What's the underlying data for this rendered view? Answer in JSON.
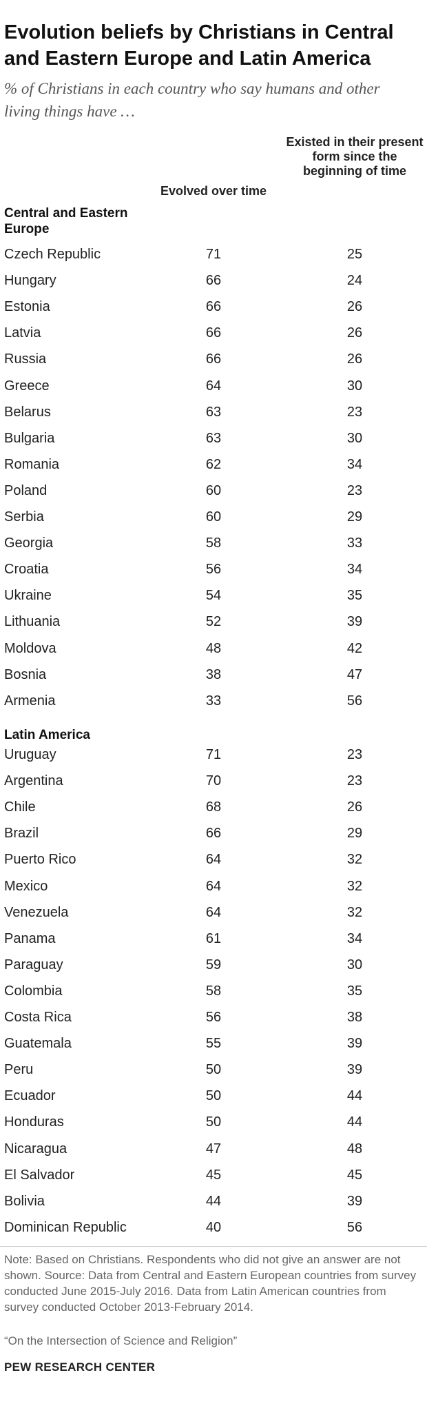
{
  "title": "Evolution beliefs by Christians in Central and Eastern Europe and Latin America",
  "subtitle": "% of Christians in each country who say humans and other living things have …",
  "columns": {
    "evolved": "Evolved over time",
    "existed": "Existed in their present form since the beginning of time"
  },
  "groups": {
    "cee": "Central and Eastern Europe",
    "latam": "Latin America"
  },
  "chart_data": {
    "type": "table",
    "title": "Evolution beliefs by Christians in Central and Eastern Europe and Latin America",
    "columns": [
      "Evolved over time",
      "Existed in their present form since the beginning of time"
    ],
    "groups": [
      {
        "name": "Central and Eastern Europe",
        "rows": [
          {
            "country": "Czech Republic",
            "evolved": 71,
            "existed": 25
          },
          {
            "country": "Hungary",
            "evolved": 66,
            "existed": 24
          },
          {
            "country": "Estonia",
            "evolved": 66,
            "existed": 26
          },
          {
            "country": "Latvia",
            "evolved": 66,
            "existed": 26
          },
          {
            "country": "Russia",
            "evolved": 66,
            "existed": 26
          },
          {
            "country": "Greece",
            "evolved": 64,
            "existed": 30
          },
          {
            "country": "Belarus",
            "evolved": 63,
            "existed": 23
          },
          {
            "country": "Bulgaria",
            "evolved": 63,
            "existed": 30
          },
          {
            "country": "Romania",
            "evolved": 62,
            "existed": 34
          },
          {
            "country": "Poland",
            "evolved": 60,
            "existed": 23
          },
          {
            "country": "Serbia",
            "evolved": 60,
            "existed": 29
          },
          {
            "country": "Georgia",
            "evolved": 58,
            "existed": 33
          },
          {
            "country": "Croatia",
            "evolved": 56,
            "existed": 34
          },
          {
            "country": "Ukraine",
            "evolved": 54,
            "existed": 35
          },
          {
            "country": "Lithuania",
            "evolved": 52,
            "existed": 39
          },
          {
            "country": "Moldova",
            "evolved": 48,
            "existed": 42
          },
          {
            "country": "Bosnia",
            "evolved": 38,
            "existed": 47
          },
          {
            "country": "Armenia",
            "evolved": 33,
            "existed": 56
          }
        ]
      },
      {
        "name": "Latin America",
        "rows": [
          {
            "country": "Uruguay",
            "evolved": 71,
            "existed": 23
          },
          {
            "country": "Argentina",
            "evolved": 70,
            "existed": 23
          },
          {
            "country": "Chile",
            "evolved": 68,
            "existed": 26
          },
          {
            "country": "Brazil",
            "evolved": 66,
            "existed": 29
          },
          {
            "country": "Puerto Rico",
            "evolved": 64,
            "existed": 32
          },
          {
            "country": "Mexico",
            "evolved": 64,
            "existed": 32
          },
          {
            "country": "Venezuela",
            "evolved": 64,
            "existed": 32
          },
          {
            "country": "Panama",
            "evolved": 61,
            "existed": 34
          },
          {
            "country": "Paraguay",
            "evolved": 59,
            "existed": 30
          },
          {
            "country": "Colombia",
            "evolved": 58,
            "existed": 35
          },
          {
            "country": "Costa Rica",
            "evolved": 56,
            "existed": 38
          },
          {
            "country": "Guatemala",
            "evolved": 55,
            "existed": 39
          },
          {
            "country": "Peru",
            "evolved": 50,
            "existed": 39
          },
          {
            "country": "Ecuador",
            "evolved": 50,
            "existed": 44
          },
          {
            "country": "Honduras",
            "evolved": 50,
            "existed": 44
          },
          {
            "country": "Nicaragua",
            "evolved": 47,
            "existed": 48
          },
          {
            "country": "El Salvador",
            "evolved": 45,
            "existed": 45
          },
          {
            "country": "Bolivia",
            "evolved": 44,
            "existed": 39
          },
          {
            "country": "Dominican Republic",
            "evolved": 40,
            "existed": 56
          }
        ]
      }
    ]
  },
  "note": "Note: Based on Christians. Respondents who did not give an answer are not shown. Source: Data from Central and Eastern European countries from survey conducted June 2015-July 2016. Data from Latin American countries from survey conducted October 2013-February 2014.",
  "source": "“On the Intersection of Science and Religion”",
  "brand": "PEW RESEARCH CENTER"
}
